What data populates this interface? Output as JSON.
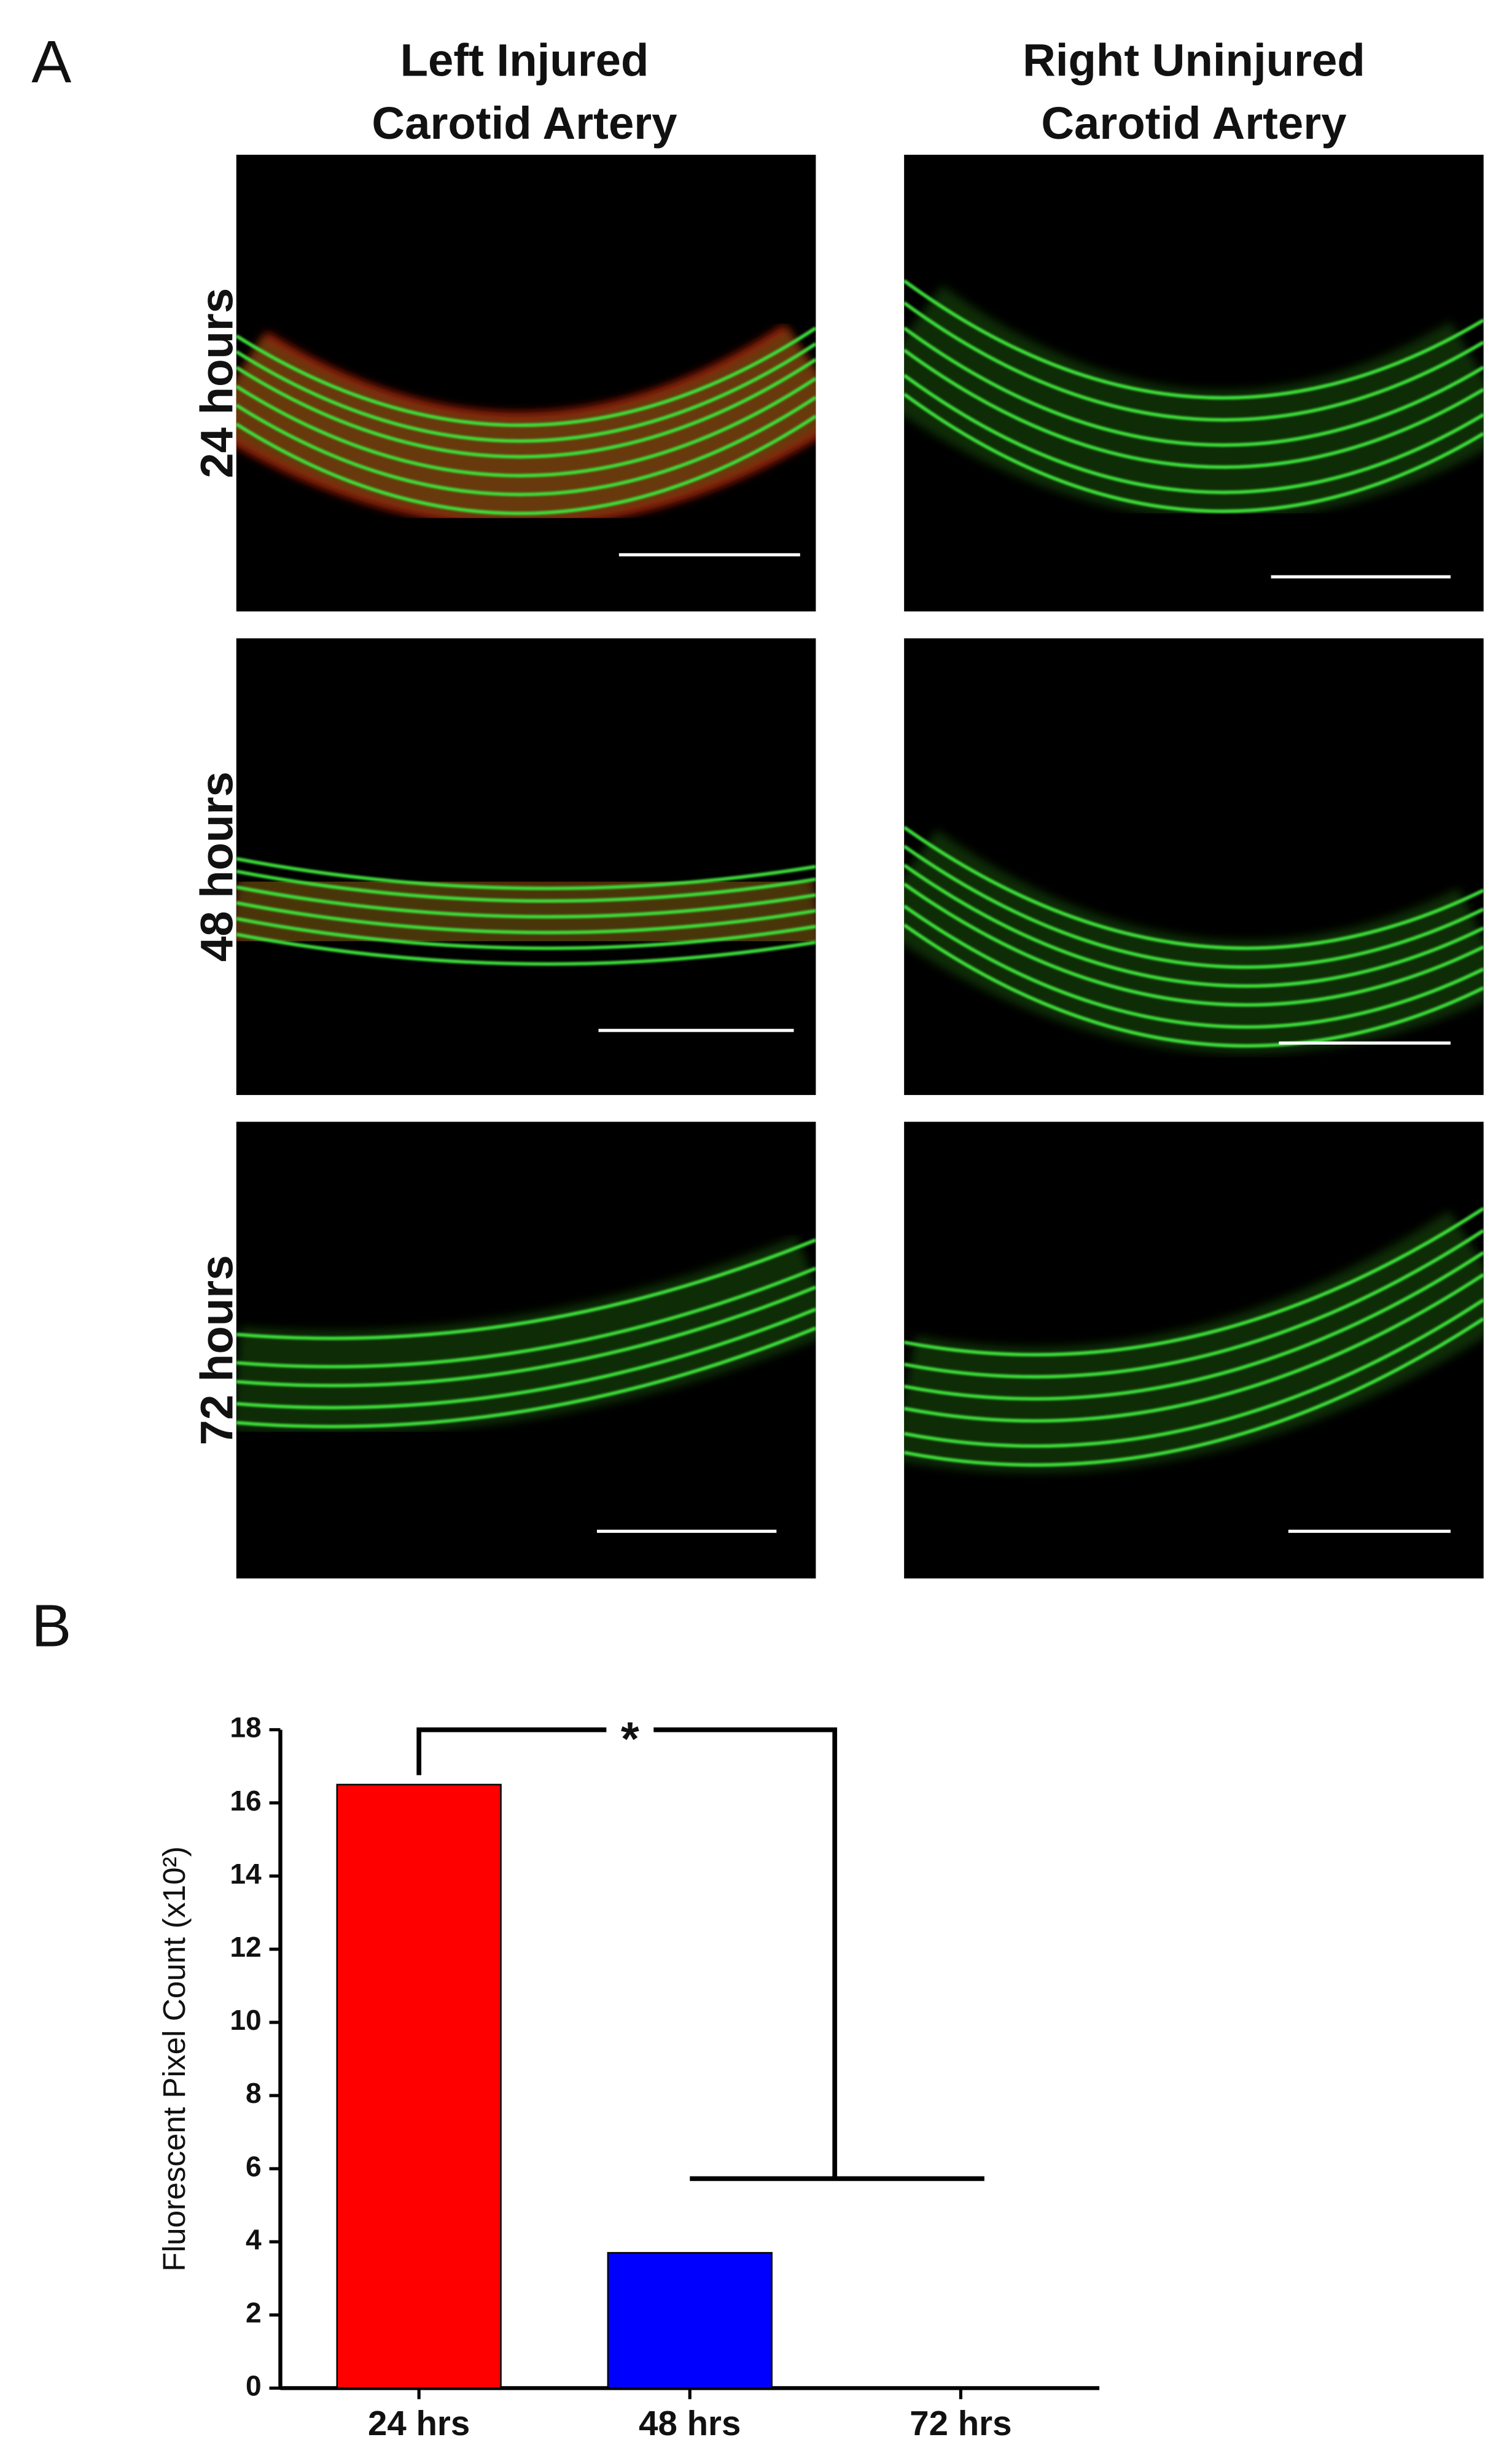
{
  "figure": {
    "panel_a": {
      "label": "A",
      "columns": [
        [
          "Left Injured",
          "Carotid Artery"
        ],
        [
          "Right Uninjured",
          "Carotid Artery"
        ]
      ],
      "rows": [
        "24 hours",
        "48 hours",
        "72 hours"
      ]
    },
    "panel_b": {
      "label": "B"
    }
  },
  "chart_data": {
    "type": "bar",
    "y_label": "Fluorescent Pixel Count (x10²)",
    "categories": [
      "24 hrs",
      "48 hrs",
      "72 hrs"
    ],
    "values": [
      16.5,
      3.7,
      0
    ],
    "colors": [
      "#ff0000",
      "#0000ff",
      null
    ],
    "annotation": "*",
    "ylim": [
      0,
      18
    ],
    "yticks": [
      0,
      2,
      4,
      6,
      8,
      10,
      12,
      14,
      16,
      18
    ]
  }
}
